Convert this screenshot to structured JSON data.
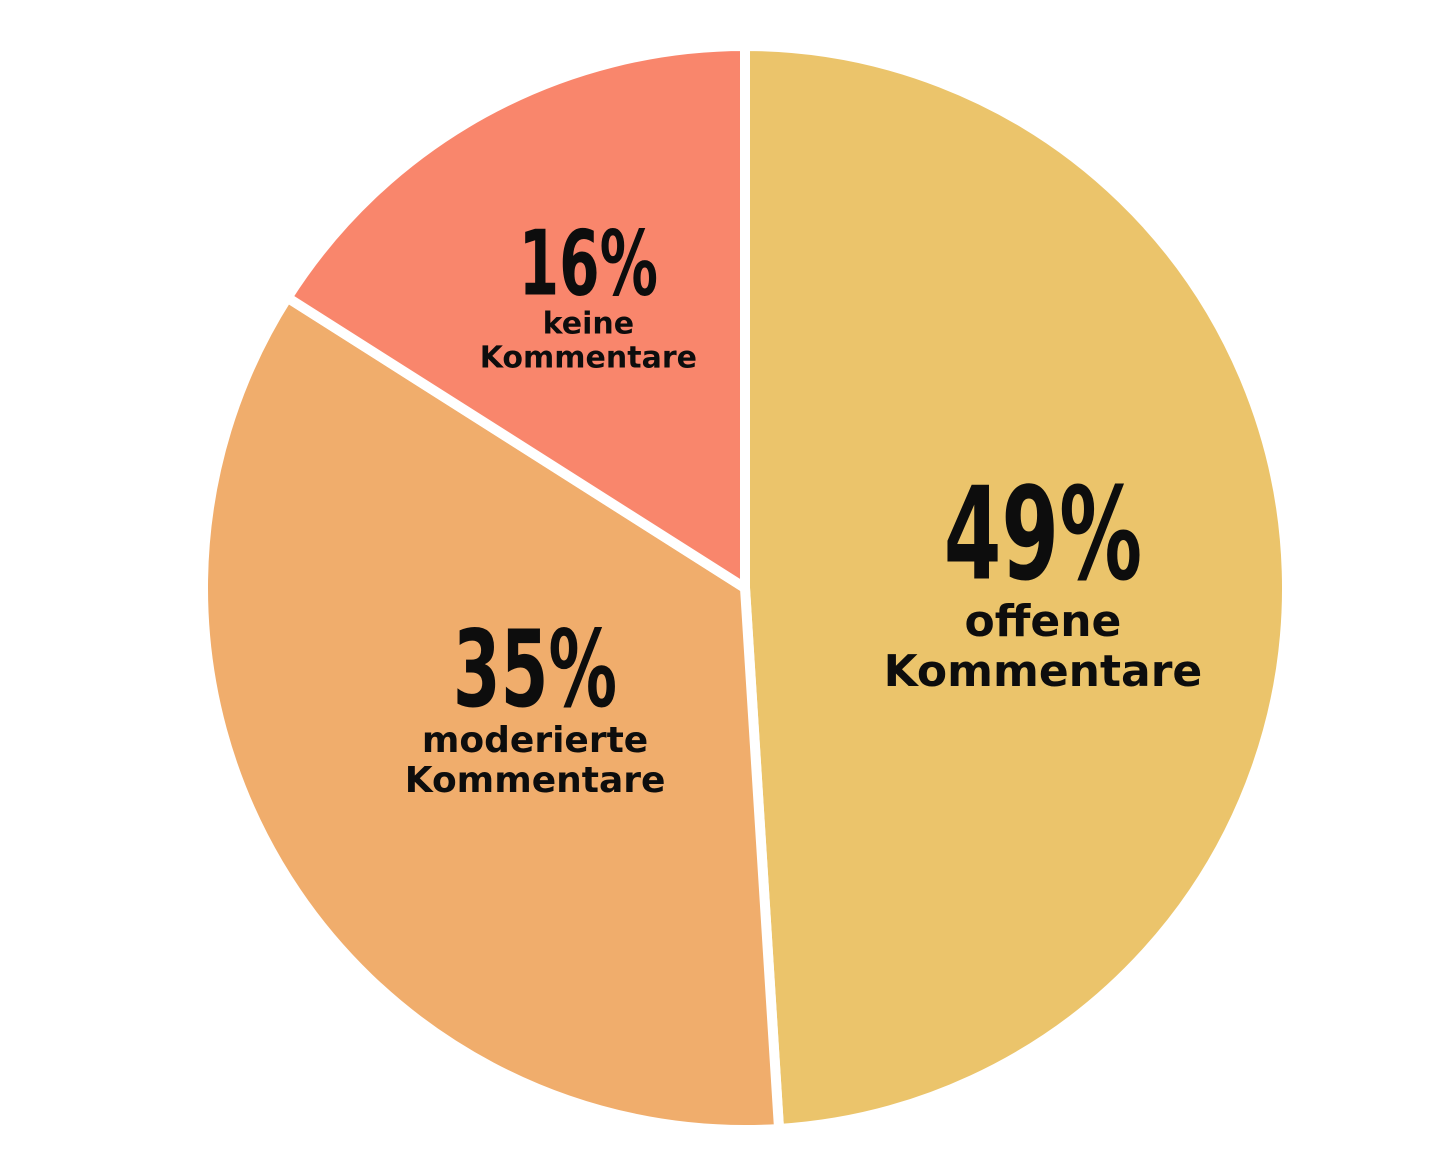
{
  "chart_data": {
    "type": "pie",
    "slices": [
      {
        "value": 49,
        "value_label": "49%",
        "label_lines": [
          "offene",
          "Kommentare"
        ],
        "color": "#EBC46B"
      },
      {
        "value": 35,
        "value_label": "35%",
        "label_lines": [
          "moderierte",
          "Kommentare"
        ],
        "color": "#F0AD6C"
      },
      {
        "value": 16,
        "value_label": "16%",
        "label_lines": [
          "keine",
          "Kommentare"
        ],
        "color": "#F9866C"
      }
    ],
    "start_angle_deg": 0,
    "direction": "clockwise",
    "separator_color": "#ffffff",
    "legend": "none"
  }
}
